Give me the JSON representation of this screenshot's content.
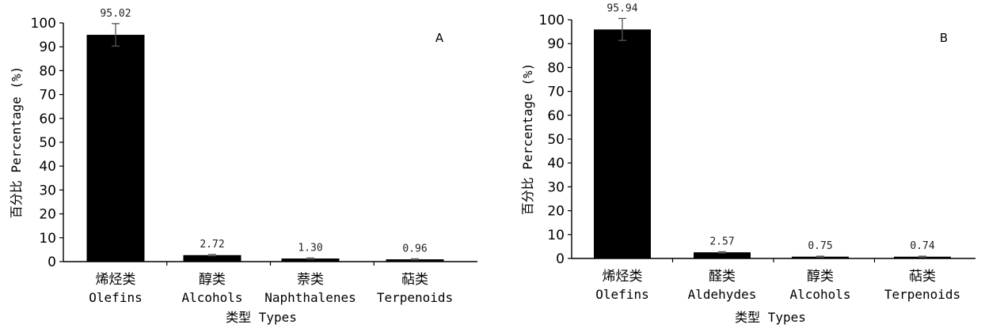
{
  "chart_data": [
    {
      "type": "bar",
      "panel_label": "A",
      "categories": [
        "烯烃类 Olefins",
        "醇类 Alcohols",
        "萘类 Naphthalenes",
        "萜类 Terpenoids"
      ],
      "categories_zh": [
        "烯烃类",
        "醇类",
        "萘类",
        "萜类"
      ],
      "categories_en": [
        "Olefins",
        "Alcohols",
        "Naphthalenes",
        "Terpenoids"
      ],
      "values": [
        95.02,
        2.72,
        1.3,
        0.96
      ],
      "value_labels": [
        "95.02",
        "2.72",
        "1.30",
        "0.96"
      ],
      "error": [
        4.7,
        0.25,
        0.2,
        0.2
      ],
      "xlabel": "类型 Types",
      "ylabel": "百分比 Percentage (%)",
      "ylim": [
        0,
        100
      ],
      "yticks": [
        "0",
        "10",
        "20",
        "30",
        "40",
        "50",
        "60",
        "70",
        "80",
        "90",
        "100"
      ],
      "grid": false,
      "bar_color": "#000000"
    },
    {
      "type": "bar",
      "panel_label": "B",
      "categories": [
        "烯烃类 Olefins",
        "醛类 Aldehydes",
        "醇类 Alcohols",
        "萜类 Terpenoids"
      ],
      "categories_zh": [
        "烯烃类",
        "醛类",
        "醇类",
        "萜类"
      ],
      "categories_en": [
        "Olefins",
        "Aldehydes",
        "Alcohols",
        "Terpenoids"
      ],
      "values": [
        95.94,
        2.57,
        0.75,
        0.74
      ],
      "value_labels": [
        "95.94",
        "2.57",
        "0.75",
        "0.74"
      ],
      "error": [
        4.6,
        0.25,
        0.2,
        0.2
      ],
      "xlabel": "类型 Types",
      "ylabel": "百分比 Percentage (%)",
      "ylim": [
        0,
        100
      ],
      "yticks": [
        "0",
        "10",
        "20",
        "30",
        "40",
        "50",
        "60",
        "70",
        "80",
        "90",
        "100"
      ],
      "grid": false,
      "bar_color": "#000000"
    }
  ]
}
